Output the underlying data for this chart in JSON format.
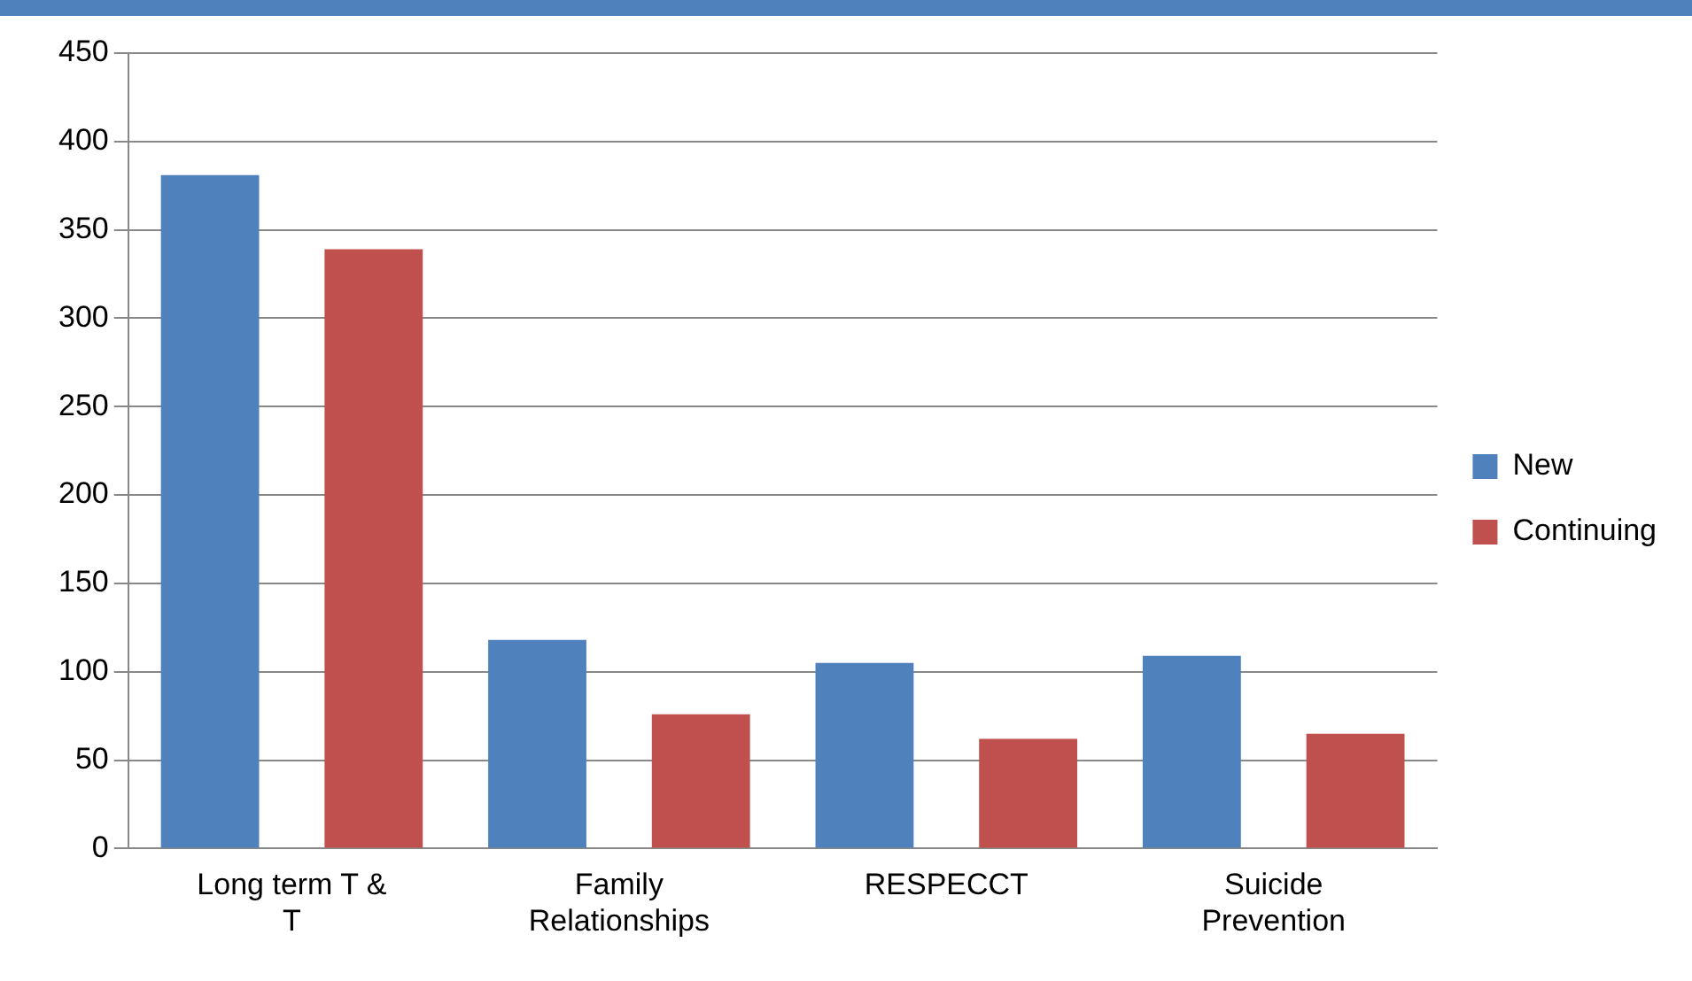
{
  "chart_data": {
    "type": "bar",
    "categories": [
      "Long term T & T",
      "Family Relationships",
      "RESPECCT",
      "Suicide Prevention"
    ],
    "series": [
      {
        "name": "New",
        "color": "#4f81bd",
        "values": [
          381,
          118,
          105,
          109
        ]
      },
      {
        "name": "Continuing",
        "color": "#c0504d",
        "values": [
          339,
          76,
          62,
          65
        ]
      }
    ],
    "ylim": [
      0,
      450
    ],
    "yticks": [
      0,
      50,
      100,
      150,
      200,
      250,
      300,
      350,
      400,
      450
    ],
    "grid": "y",
    "legend": "right"
  }
}
